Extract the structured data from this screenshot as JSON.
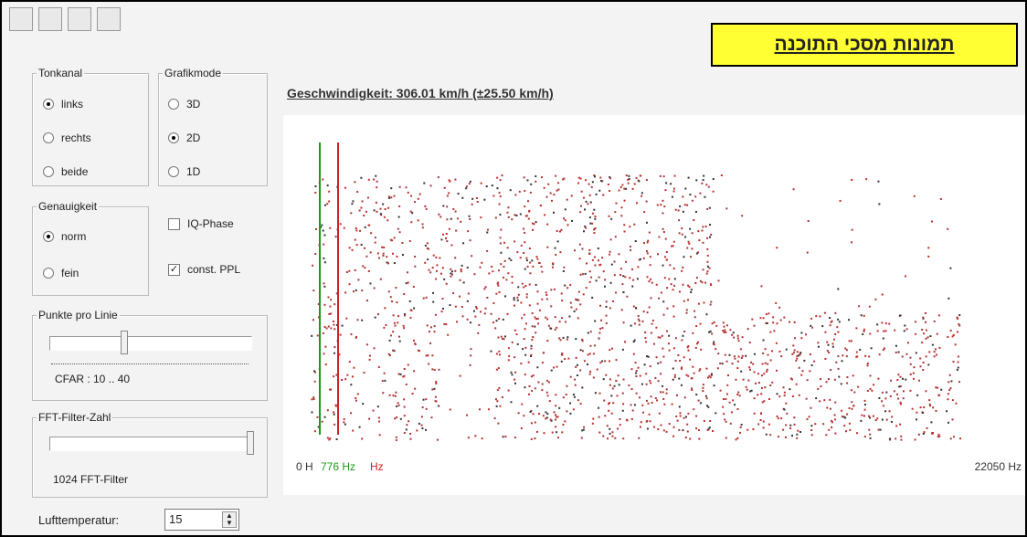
{
  "banner": "תמונות מסכי התוכנה",
  "tonkanal": {
    "title": "Tonkanal",
    "options": [
      {
        "label": "links",
        "checked": true
      },
      {
        "label": "rechts",
        "checked": false
      },
      {
        "label": "beide",
        "checked": false
      }
    ]
  },
  "grafikmode": {
    "title": "Grafikmode",
    "options": [
      {
        "label": "3D",
        "checked": false
      },
      {
        "label": "2D",
        "checked": true
      },
      {
        "label": "1D",
        "checked": false
      }
    ]
  },
  "genauigkeit": {
    "title": "Genauigkeit",
    "options": [
      {
        "label": "norm",
        "checked": true
      },
      {
        "label": "fein",
        "checked": false
      }
    ]
  },
  "checkboxes": [
    {
      "label": "IQ-Phase",
      "checked": false
    },
    {
      "label": "const. PPL",
      "checked": true
    }
  ],
  "punkte": {
    "title": "Punkte pro Linie",
    "caption": "CFAR : 10 .. 40"
  },
  "fft": {
    "title": "FFT-Filter-Zahl",
    "caption": "1024 FFT-Filter"
  },
  "temperature": {
    "label": "Lufttemperatur:",
    "value": 15
  },
  "display": {
    "speed": "Geschwindigkeit: 306.01 km/h (±25.50 km/h)",
    "axis_start": "0 H",
    "marker_green": "776 Hz",
    "marker_red": "Hz",
    "axis_end": "22050 Hz"
  }
}
